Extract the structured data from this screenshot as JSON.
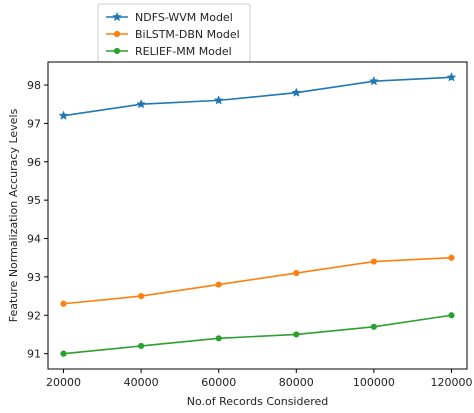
{
  "chart_data": {
    "type": "line",
    "title": "",
    "xlabel": "No.of Records Considered",
    "ylabel": "Feature Normalization Accuracy Levels",
    "x": [
      20000,
      40000,
      60000,
      80000,
      100000,
      120000
    ],
    "xticks": [
      20000,
      40000,
      60000,
      80000,
      100000,
      120000
    ],
    "yticks": [
      91,
      92,
      93,
      94,
      95,
      96,
      97,
      98
    ],
    "xlim": [
      16000,
      124000
    ],
    "ylim": [
      90.6,
      98.6
    ],
    "grid": false,
    "legend_position": "top-left, outside plot",
    "series": [
      {
        "name": "NDFS-WVM Model",
        "color": "#1f77b4",
        "marker": "star",
        "values": [
          97.2,
          97.5,
          97.6,
          97.8,
          98.1,
          98.2
        ]
      },
      {
        "name": "BiLSTM-DBN Model",
        "color": "#ff7f0e",
        "marker": "circle",
        "values": [
          92.3,
          92.5,
          92.8,
          93.1,
          93.4,
          93.5
        ]
      },
      {
        "name": "RELIEF-MM Model",
        "color": "#2ca02c",
        "marker": "circle",
        "values": [
          91.0,
          91.2,
          91.4,
          91.5,
          91.7,
          92.0
        ]
      }
    ]
  }
}
